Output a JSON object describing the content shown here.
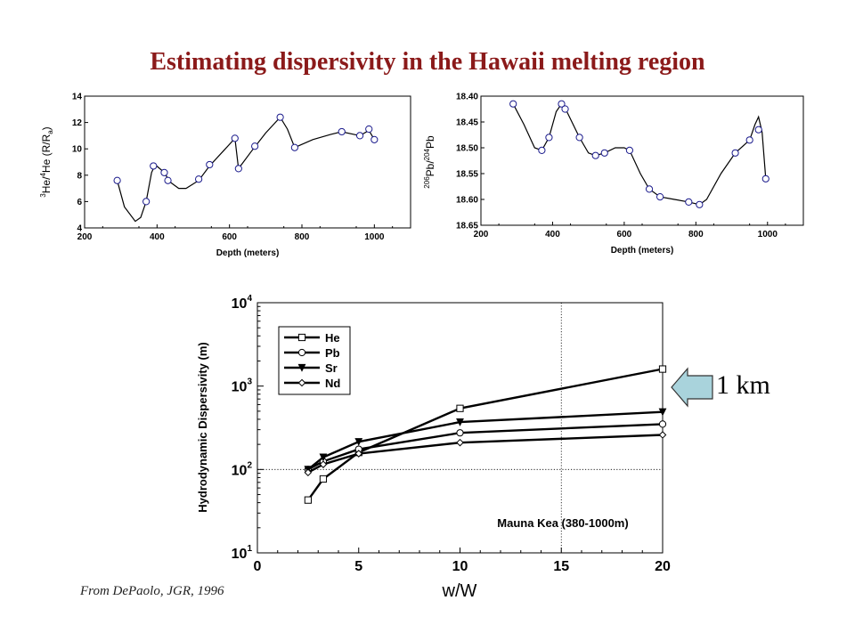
{
  "page": {
    "title": "Estimating dispersivity in the Hawaii melting region",
    "citation": "From DePaolo, JGR, 1996",
    "callout": {
      "text": "1 km",
      "arrow_color": "#a9d3dc"
    }
  },
  "chart_data": [
    {
      "id": "he",
      "type": "line",
      "xlabel": "Depth (meters)",
      "ylabel_parts": {
        "sup1": "3",
        "base1": "He/",
        "sup2": "4",
        "base2": "He (R/R",
        "sub": "a",
        "close": ")"
      },
      "xlim": [
        200,
        1100
      ],
      "ylim": [
        4,
        14
      ],
      "xticks": [
        200,
        400,
        600,
        800,
        1000
      ],
      "yticks": [
        4,
        6,
        8,
        10,
        12,
        14
      ],
      "ytick_labels": [
        "4",
        "6",
        "8",
        "10",
        "12",
        "14"
      ],
      "points": [
        [
          290,
          7.6
        ],
        [
          370,
          6.0
        ],
        [
          390,
          8.7
        ],
        [
          420,
          8.2
        ],
        [
          430,
          7.6
        ],
        [
          515,
          7.7
        ],
        [
          545,
          8.8
        ],
        [
          615,
          10.8
        ],
        [
          625,
          8.5
        ],
        [
          670,
          10.2
        ],
        [
          740,
          12.4
        ],
        [
          780,
          10.1
        ],
        [
          910,
          11.3
        ],
        [
          960,
          11.0
        ],
        [
          985,
          11.5
        ],
        [
          1000,
          10.7
        ]
      ],
      "curve": [
        [
          290,
          7.6
        ],
        [
          310,
          5.6
        ],
        [
          340,
          4.5
        ],
        [
          355,
          4.8
        ],
        [
          370,
          6.0
        ],
        [
          385,
          8.2
        ],
        [
          395,
          8.8
        ],
        [
          420,
          8.2
        ],
        [
          435,
          7.5
        ],
        [
          460,
          7.0
        ],
        [
          480,
          7.0
        ],
        [
          515,
          7.6
        ],
        [
          545,
          8.7
        ],
        [
          585,
          9.9
        ],
        [
          615,
          10.8
        ],
        [
          625,
          8.5
        ],
        [
          660,
          9.8
        ],
        [
          700,
          11.2
        ],
        [
          740,
          12.4
        ],
        [
          760,
          11.5
        ],
        [
          780,
          10.1
        ],
        [
          830,
          10.7
        ],
        [
          880,
          11.1
        ],
        [
          910,
          11.3
        ],
        [
          960,
          11.0
        ],
        [
          985,
          11.4
        ],
        [
          1000,
          10.7
        ]
      ]
    },
    {
      "id": "pb",
      "type": "line",
      "xlabel": "Depth (meters)",
      "ylabel_parts": {
        "sup1": "206",
        "base1": "Pb/",
        "sup2": "204",
        "base2": "Pb"
      },
      "xlim": [
        200,
        1100
      ],
      "ylim": [
        18.4,
        18.65
      ],
      "inverted": true,
      "xticks": [
        200,
        400,
        600,
        800,
        1000
      ],
      "yticks": [
        18.4,
        18.45,
        18.5,
        18.55,
        18.6,
        18.65
      ],
      "ytick_labels": [
        "18.40",
        "18.45",
        "18.50",
        "18.55",
        "18.60",
        "18.65"
      ],
      "points": [
        [
          290,
          18.415
        ],
        [
          370,
          18.505
        ],
        [
          390,
          18.48
        ],
        [
          425,
          18.415
        ],
        [
          435,
          18.425
        ],
        [
          475,
          18.48
        ],
        [
          520,
          18.515
        ],
        [
          545,
          18.51
        ],
        [
          615,
          18.505
        ],
        [
          670,
          18.58
        ],
        [
          700,
          18.595
        ],
        [
          780,
          18.605
        ],
        [
          810,
          18.61
        ],
        [
          910,
          18.51
        ],
        [
          950,
          18.485
        ],
        [
          975,
          18.465
        ],
        [
          995,
          18.56
        ]
      ],
      "curve": [
        [
          290,
          18.415
        ],
        [
          320,
          18.455
        ],
        [
          350,
          18.5
        ],
        [
          370,
          18.505
        ],
        [
          390,
          18.48
        ],
        [
          410,
          18.43
        ],
        [
          425,
          18.415
        ],
        [
          440,
          18.43
        ],
        [
          475,
          18.48
        ],
        [
          500,
          18.51
        ],
        [
          520,
          18.515
        ],
        [
          545,
          18.51
        ],
        [
          575,
          18.5
        ],
        [
          600,
          18.5
        ],
        [
          615,
          18.505
        ],
        [
          645,
          18.55
        ],
        [
          670,
          18.58
        ],
        [
          700,
          18.595
        ],
        [
          740,
          18.6
        ],
        [
          780,
          18.605
        ],
        [
          810,
          18.61
        ],
        [
          830,
          18.6
        ],
        [
          870,
          18.55
        ],
        [
          910,
          18.51
        ],
        [
          950,
          18.485
        ],
        [
          965,
          18.455
        ],
        [
          975,
          18.44
        ],
        [
          985,
          18.47
        ],
        [
          995,
          18.56
        ]
      ]
    },
    {
      "id": "dispersivity",
      "type": "line",
      "xlabel": "w/W",
      "ylabel": "Hydrodynamic Dispersivity (m)",
      "yscale": "log",
      "xlim": [
        0,
        20
      ],
      "ylim": [
        10,
        10000
      ],
      "xticks": [
        0,
        5,
        10,
        15,
        20
      ],
      "yticks": [
        10,
        100,
        1000,
        10000
      ],
      "ytick_exponents": [
        "1",
        "2",
        "3",
        "4"
      ],
      "ytick_base": "10",
      "annotation": "Mauna Kea (380-1000m)",
      "series": [
        {
          "name": "He",
          "marker": "square",
          "points": [
            [
              2.5,
              43
            ],
            [
              3.25,
              77
            ],
            [
              5,
              160
            ],
            [
              10,
              540
            ],
            [
              20,
              1600
            ]
          ]
        },
        {
          "name": "Pb",
          "marker": "circle",
          "points": [
            [
              2.5,
              100
            ],
            [
              3.25,
              125
            ],
            [
              5,
              175
            ],
            [
              10,
              275
            ],
            [
              20,
              350
            ]
          ]
        },
        {
          "name": "Sr",
          "marker": "triangle-down",
          "points": [
            [
              2.5,
              100
            ],
            [
              3.25,
              140
            ],
            [
              5,
              215
            ],
            [
              10,
              370
            ],
            [
              20,
              490
            ]
          ]
        },
        {
          "name": "Nd",
          "marker": "diamond",
          "points": [
            [
              2.5,
              92
            ],
            [
              3.25,
              115
            ],
            [
              5,
              155
            ],
            [
              10,
              210
            ],
            [
              20,
              260
            ]
          ]
        }
      ]
    }
  ]
}
